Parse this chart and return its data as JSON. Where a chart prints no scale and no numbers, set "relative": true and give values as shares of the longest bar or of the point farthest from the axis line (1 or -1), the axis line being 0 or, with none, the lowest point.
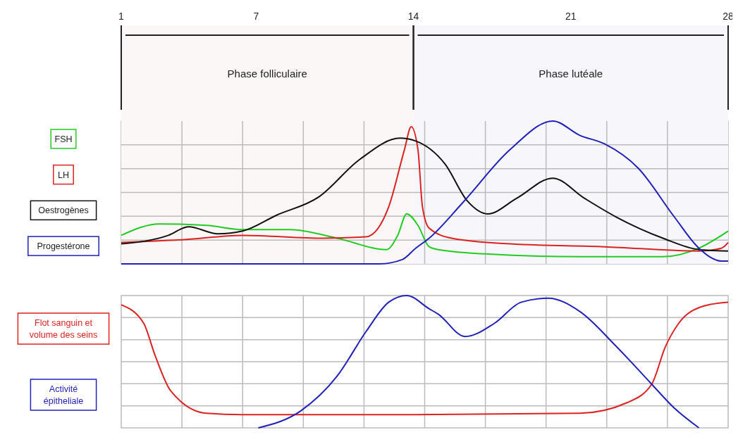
{
  "chart_data": [
    {
      "type": "line",
      "relative": true,
      "xlim": [
        1,
        28
      ],
      "xticks": [
        1,
        7,
        14,
        21,
        28
      ],
      "grid": true,
      "legend": "left",
      "bands": [
        {
          "axis": "x",
          "from": 1,
          "to": 14,
          "label": "Phase folliculaire"
        },
        {
          "axis": "x",
          "from": 14,
          "to": 28,
          "label": "Phase lutéale"
        }
      ],
      "series": [
        {
          "name": "FSH",
          "color": "#22cc22",
          "x": [
            1,
            2.7,
            4.8,
            6.4,
            8.5,
            10.6,
            12.8,
            13.3,
            13.7,
            14.2,
            14.7,
            15.1,
            17.2,
            21.4,
            25.1,
            26.7,
            28
          ],
          "values": [
            0.2,
            0.28,
            0.27,
            0.24,
            0.24,
            0.18,
            0.1,
            0.2,
            0.35,
            0.27,
            0.12,
            0.1,
            0.07,
            0.05,
            0.05,
            0.11,
            0.23
          ]
        },
        {
          "name": "LH",
          "color": "#dd2222",
          "x": [
            1,
            3.8,
            6.4,
            10,
            11.9,
            12.9,
            13.6,
            13.9,
            14.2,
            14.4,
            14.7,
            15.7,
            18.3,
            22.5,
            26.7,
            27.7,
            28
          ],
          "values": [
            0.15,
            0.17,
            0.2,
            0.18,
            0.19,
            0.4,
            0.8,
            0.96,
            0.8,
            0.4,
            0.25,
            0.18,
            0.14,
            0.12,
            0.09,
            0.11,
            0.15
          ]
        },
        {
          "name": "Oestrogènes",
          "color": "#111111",
          "x": [
            1,
            3.1,
            4,
            5.3,
            6.4,
            7.9,
            9.8,
            11.6,
            13.4,
            14.1,
            15.4,
            16.4,
            17.3,
            18.6,
            20.2,
            21.6,
            23,
            25.1,
            26.7,
            28
          ],
          "values": [
            0.14,
            0.2,
            0.26,
            0.21,
            0.23,
            0.34,
            0.47,
            0.73,
            0.88,
            0.86,
            0.7,
            0.44,
            0.35,
            0.46,
            0.6,
            0.46,
            0.33,
            0.18,
            0.1,
            0.09
          ]
        },
        {
          "name": "Progestérone",
          "color": "#2222bb",
          "x": [
            1,
            12.5,
            13.5,
            14.1,
            14.7,
            16.2,
            18.3,
            20.2,
            21.4,
            22.5,
            24,
            25.6,
            26.7,
            27.7,
            28
          ],
          "values": [
            0,
            0,
            0.03,
            0.11,
            0.18,
            0.43,
            0.8,
            1,
            0.9,
            0.84,
            0.67,
            0.33,
            0.11,
            0.02,
            0.02
          ]
        }
      ]
    },
    {
      "type": "line",
      "relative": true,
      "xlim": [
        1,
        28
      ],
      "grid": true,
      "legend": "left",
      "series": [
        {
          "name": "Flot sanguin et volume des seins",
          "color": "#dd2222",
          "x": [
            1,
            2,
            2.5,
            3.2,
            4.8,
            6.4,
            14,
            21.4,
            23.5,
            24.6,
            25.2,
            25.8,
            26.9,
            28
          ],
          "values": [
            0.93,
            0.79,
            0.55,
            0.28,
            0.11,
            0.1,
            0.1,
            0.11,
            0.19,
            0.33,
            0.61,
            0.79,
            0.92,
            0.95
          ]
        },
        {
          "name": "Activité épitheliale",
          "color": "#2222bb",
          "x": [
            7.1,
            9,
            10.6,
            11.9,
            12.9,
            13.7,
            14.7,
            15.1,
            16.3,
            17.6,
            18.8,
            20,
            21.4,
            23,
            24.6,
            25.6,
            26.7
          ],
          "values": [
            0,
            0.13,
            0.39,
            0.73,
            0.95,
            1,
            0.9,
            0.86,
            0.69,
            0.79,
            0.95,
            0.98,
            0.88,
            0.62,
            0.33,
            0.15,
            0
          ]
        }
      ]
    }
  ]
}
